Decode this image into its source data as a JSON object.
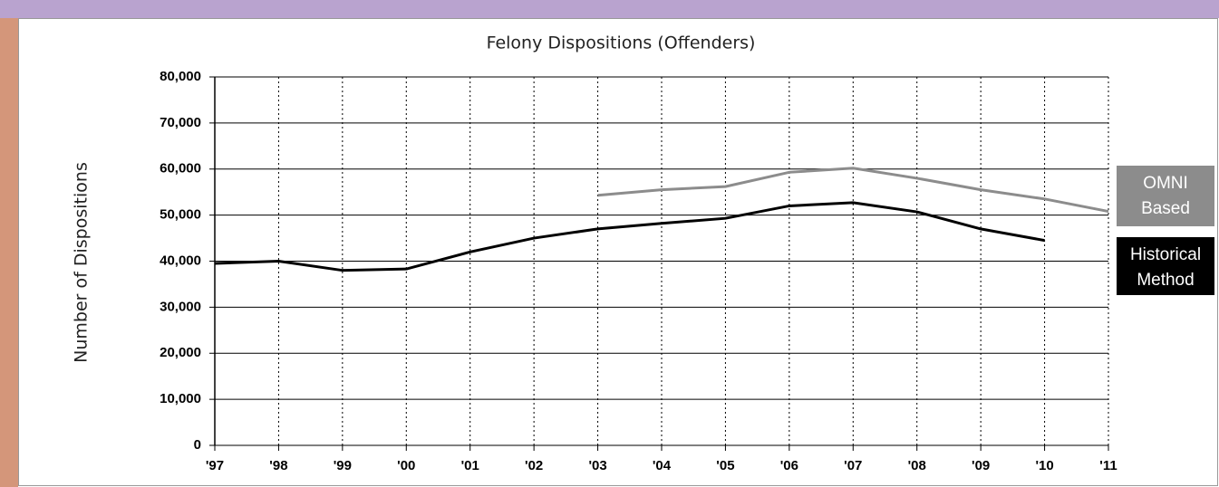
{
  "chart_data": {
    "type": "line",
    "title": "Felony Dispositions (Offenders)",
    "y_label": "Number of Dispositions",
    "categories": [
      "'97",
      "'98",
      "'99",
      "'00",
      "'01",
      "'02",
      "'03",
      "'04",
      "'05",
      "'06",
      "'07",
      "'08",
      "'09",
      "'10",
      "'11"
    ],
    "series": [
      {
        "name": "OMNI Based",
        "color": "#8c8c8c",
        "values": [
          null,
          null,
          null,
          null,
          null,
          null,
          54300,
          55500,
          56200,
          59300,
          60200,
          58000,
          55500,
          53500,
          50800
        ]
      },
      {
        "name": "Historical Method",
        "color": "#000000",
        "values": [
          39500,
          40000,
          38000,
          38300,
          42000,
          45000,
          47000,
          48200,
          49300,
          52000,
          52700,
          50700,
          47000,
          44500,
          null
        ]
      }
    ],
    "ylim": [
      0,
      80000
    ],
    "yticks": [
      0,
      {
        "value": 10000,
        "label": "10,000"
      },
      {
        "value": 20000,
        "label": "20,000"
      },
      {
        "value": 30000,
        "label": "30,000"
      },
      {
        "value": 40000,
        "label": "40,000"
      },
      {
        "value": 50000,
        "label": "50,000"
      },
      {
        "value": 60000,
        "label": "60,000"
      },
      {
        "value": 70000,
        "label": "70,000"
      },
      {
        "value": 80000,
        "label": "80,000"
      }
    ],
    "grid": true
  }
}
